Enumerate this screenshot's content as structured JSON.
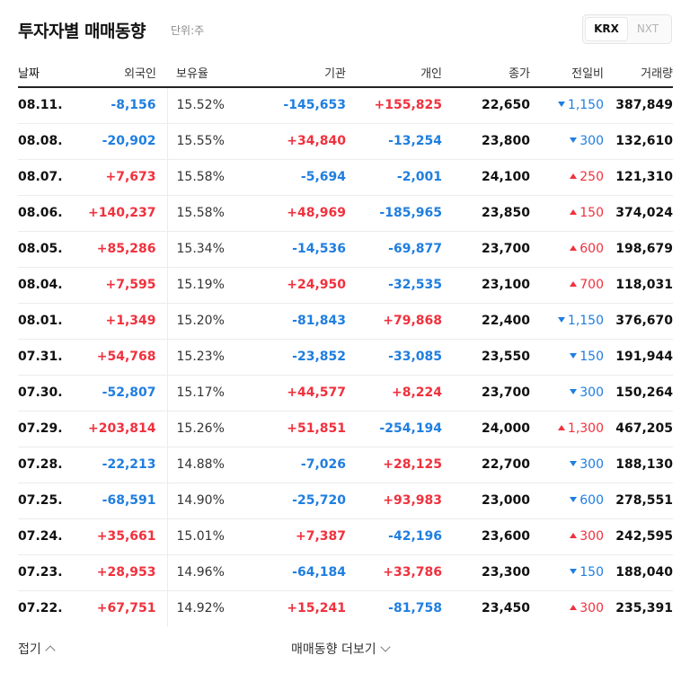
{
  "header": {
    "title": "투자자별 매매동향",
    "unit": "단위:주",
    "market_tabs": [
      {
        "label": "KRX",
        "active": true
      },
      {
        "label": "NXT",
        "active": false
      }
    ]
  },
  "table": {
    "columns": {
      "date": "날짜",
      "foreign": "외국인",
      "holding": "보유율",
      "institution": "기관",
      "individual": "개인",
      "close": "종가",
      "change": "전일비",
      "volume": "거래량"
    },
    "rows": [
      {
        "date": "08.11.",
        "foreign": "-8,156",
        "holding": "15.52%",
        "institution": "-145,653",
        "individual": "+155,825",
        "close": "22,650",
        "change": "1,150",
        "change_dir": "down",
        "volume": "387,849"
      },
      {
        "date": "08.08.",
        "foreign": "-20,902",
        "holding": "15.55%",
        "institution": "+34,840",
        "individual": "-13,254",
        "close": "23,800",
        "change": "300",
        "change_dir": "down",
        "volume": "132,610"
      },
      {
        "date": "08.07.",
        "foreign": "+7,673",
        "holding": "15.58%",
        "institution": "-5,694",
        "individual": "-2,001",
        "close": "24,100",
        "change": "250",
        "change_dir": "up",
        "volume": "121,310"
      },
      {
        "date": "08.06.",
        "foreign": "+140,237",
        "holding": "15.58%",
        "institution": "+48,969",
        "individual": "-185,965",
        "close": "23,850",
        "change": "150",
        "change_dir": "up",
        "volume": "374,024"
      },
      {
        "date": "08.05.",
        "foreign": "+85,286",
        "holding": "15.34%",
        "institution": "-14,536",
        "individual": "-69,877",
        "close": "23,700",
        "change": "600",
        "change_dir": "up",
        "volume": "198,679"
      },
      {
        "date": "08.04.",
        "foreign": "+7,595",
        "holding": "15.19%",
        "institution": "+24,950",
        "individual": "-32,535",
        "close": "23,100",
        "change": "700",
        "change_dir": "up",
        "volume": "118,031"
      },
      {
        "date": "08.01.",
        "foreign": "+1,349",
        "holding": "15.20%",
        "institution": "-81,843",
        "individual": "+79,868",
        "close": "22,400",
        "change": "1,150",
        "change_dir": "down",
        "volume": "376,670"
      },
      {
        "date": "07.31.",
        "foreign": "+54,768",
        "holding": "15.23%",
        "institution": "-23,852",
        "individual": "-33,085",
        "close": "23,550",
        "change": "150",
        "change_dir": "down",
        "volume": "191,944"
      },
      {
        "date": "07.30.",
        "foreign": "-52,807",
        "holding": "15.17%",
        "institution": "+44,577",
        "individual": "+8,224",
        "close": "23,700",
        "change": "300",
        "change_dir": "down",
        "volume": "150,264"
      },
      {
        "date": "07.29.",
        "foreign": "+203,814",
        "holding": "15.26%",
        "institution": "+51,851",
        "individual": "-254,194",
        "close": "24,000",
        "change": "1,300",
        "change_dir": "up",
        "volume": "467,205"
      },
      {
        "date": "07.28.",
        "foreign": "-22,213",
        "holding": "14.88%",
        "institution": "-7,026",
        "individual": "+28,125",
        "close": "22,700",
        "change": "300",
        "change_dir": "down",
        "volume": "188,130"
      },
      {
        "date": "07.25.",
        "foreign": "-68,591",
        "holding": "14.90%",
        "institution": "-25,720",
        "individual": "+93,983",
        "close": "23,000",
        "change": "600",
        "change_dir": "down",
        "volume": "278,551"
      },
      {
        "date": "07.24.",
        "foreign": "+35,661",
        "holding": "15.01%",
        "institution": "+7,387",
        "individual": "-42,196",
        "close": "23,600",
        "change": "300",
        "change_dir": "up",
        "volume": "242,595"
      },
      {
        "date": "07.23.",
        "foreign": "+28,953",
        "holding": "14.96%",
        "institution": "-64,184",
        "individual": "+33,786",
        "close": "23,300",
        "change": "150",
        "change_dir": "down",
        "volume": "188,040"
      },
      {
        "date": "07.22.",
        "foreign": "+67,751",
        "holding": "14.92%",
        "institution": "+15,241",
        "individual": "-81,758",
        "close": "23,450",
        "change": "300",
        "change_dir": "up",
        "volume": "235,391"
      }
    ]
  },
  "footer": {
    "collapse_label": "접기",
    "more_label": "매매동향 더보기"
  },
  "colors": {
    "up": "#f0313d",
    "down": "#1f7ee0"
  }
}
